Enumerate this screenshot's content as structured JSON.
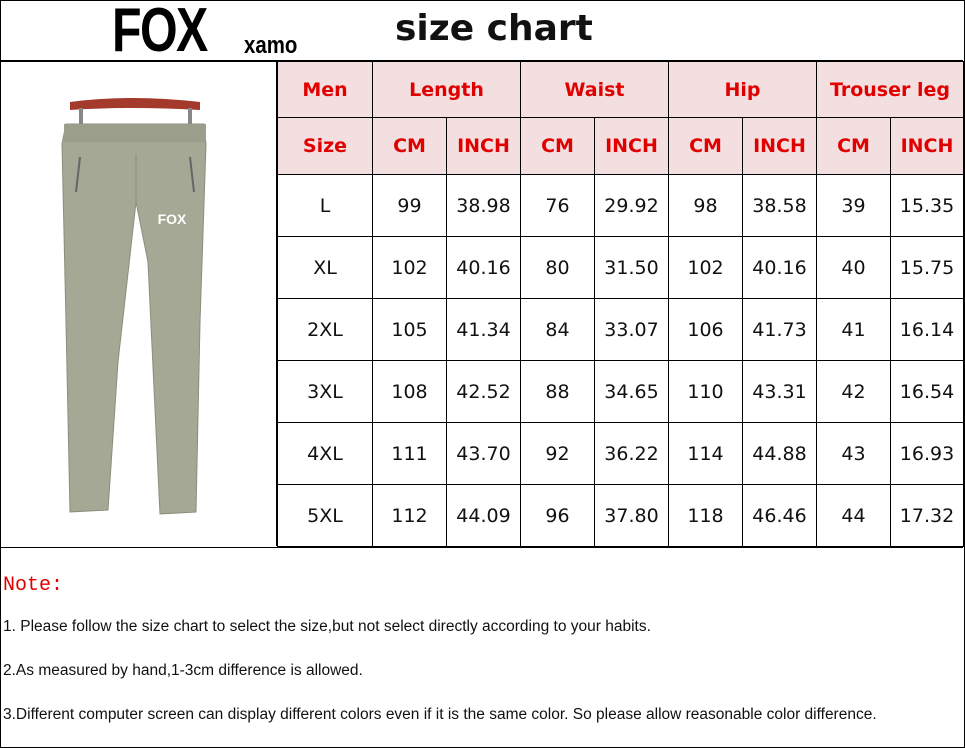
{
  "brand": {
    "big": "FOX",
    "small": "xamo"
  },
  "title": "size chart",
  "image": {
    "pants_logo": "FOX",
    "colors": {
      "pants": "#a4a894",
      "hanger": "#a33a2c"
    }
  },
  "colors": {
    "header_bg": "#f4dfe0",
    "header_text": "#e00000"
  },
  "table": {
    "group_headers": [
      "Men",
      "Length",
      "Waist",
      "Hip",
      "Trouser leg"
    ],
    "sub_headers": [
      "Size",
      "CM",
      "INCH",
      "CM",
      "INCH",
      "CM",
      "INCH",
      "CM",
      "INCH"
    ],
    "rows": [
      [
        "L",
        "99",
        "38.98",
        "76",
        "29.92",
        "98",
        "38.58",
        "39",
        "15.35"
      ],
      [
        "XL",
        "102",
        "40.16",
        "80",
        "31.50",
        "102",
        "40.16",
        "40",
        "15.75"
      ],
      [
        "2XL",
        "105",
        "41.34",
        "84",
        "33.07",
        "106",
        "41.73",
        "41",
        "16.14"
      ],
      [
        "3XL",
        "108",
        "42.52",
        "88",
        "34.65",
        "110",
        "43.31",
        "42",
        "16.54"
      ],
      [
        "4XL",
        "111",
        "43.70",
        "92",
        "36.22",
        "114",
        "44.88",
        "43",
        "16.93"
      ],
      [
        "5XL",
        "112",
        "44.09",
        "96",
        "37.80",
        "118",
        "46.46",
        "44",
        "17.32"
      ]
    ]
  },
  "notes": {
    "title": "Note:",
    "items": [
      "1.   Please follow the size chart to select the size,but not select directly according to your habits.",
      "2.As measured by hand,1-3cm difference is allowed.",
      "3.Different computer screen can display different colors even if it is the same color. So please allow reasonable color difference."
    ]
  }
}
